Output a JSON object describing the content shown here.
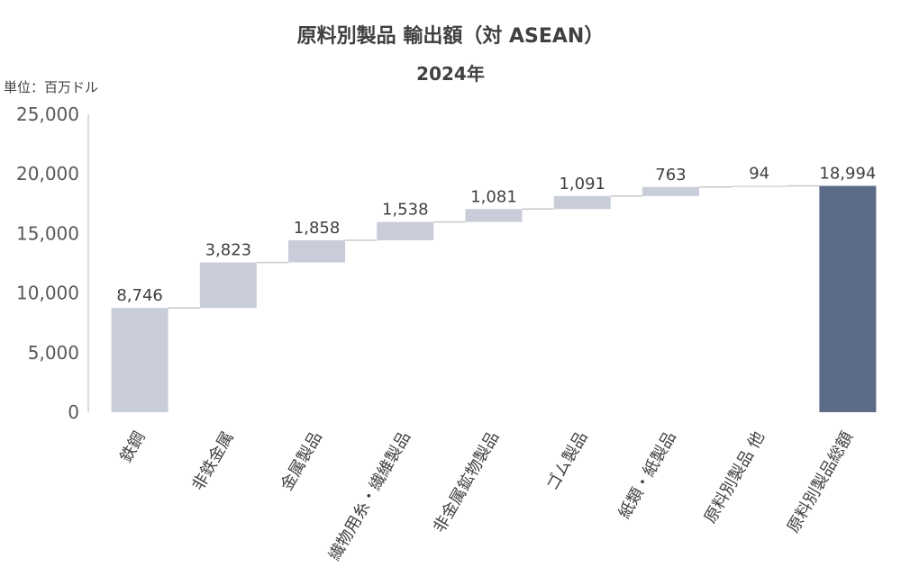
{
  "chart_data": {
    "type": "waterfall",
    "title": "原料別製品 輸出額（対 ASEAN）",
    "subtitle": "2024年",
    "unit_label": "単位：百万ドル",
    "categories": [
      "鉄鋼",
      "非鉄金属",
      "金属製品",
      "繊物用糸・繊維製品",
      "非金属鉱物製品",
      "ゴム製品",
      "紙類・紙製品",
      "原料別製品 他",
      "原料別製品総額"
    ],
    "values": [
      8746,
      3823,
      1858,
      1538,
      1081,
      1091,
      763,
      94,
      18994
    ],
    "value_labels": [
      "8,746",
      "3,823",
      "1,858",
      "1,538",
      "1,081",
      "1,091",
      "763",
      "94",
      "18,994"
    ],
    "total_index": 8,
    "ylim": [
      0,
      25000
    ],
    "yticks": [
      0,
      5000,
      10000,
      15000,
      20000,
      25000
    ],
    "ytick_labels": [
      "0",
      "5,000",
      "10,000",
      "15,000",
      "20,000",
      "25,000"
    ],
    "grid": false,
    "colors": {
      "increment": "#c8cdd9",
      "total": "#5b6b88",
      "connector": "#c8c8c8",
      "axis": "#d0d0d0"
    }
  }
}
